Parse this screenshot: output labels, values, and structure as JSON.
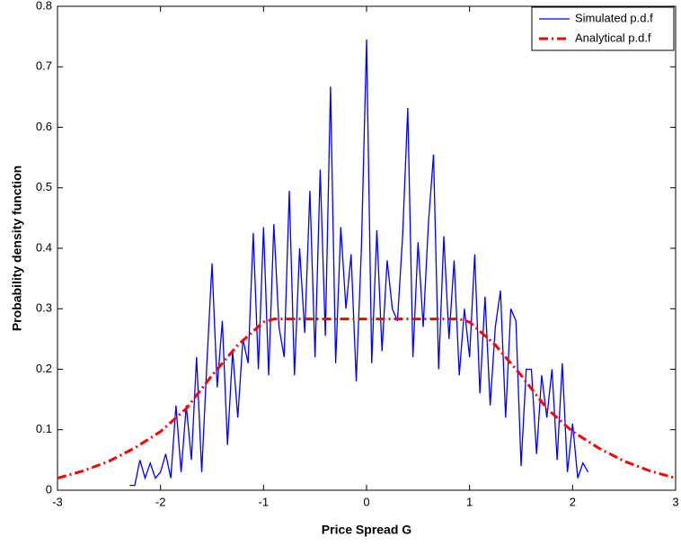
{
  "chart_data": {
    "type": "line",
    "xlabel": "Price Spread G",
    "ylabel": "Probability density function",
    "xlim": [
      -3,
      3
    ],
    "ylim": [
      0,
      0.8
    ],
    "xticks": [
      -3,
      -2,
      -1,
      0,
      1,
      2,
      3
    ],
    "yticks": [
      0,
      0.1,
      0.2,
      0.3,
      0.4,
      0.5,
      0.6,
      0.7,
      0.8
    ],
    "legend": "upper-right",
    "series": [
      {
        "name": "Simulated p.d.f",
        "color": "#0000ff",
        "style": "solid",
        "x": [
          -2.3,
          -2.25,
          -2.2,
          -2.15,
          -2.1,
          -2.05,
          -2.0,
          -1.95,
          -1.9,
          -1.85,
          -1.8,
          -1.75,
          -1.7,
          -1.65,
          -1.6,
          -1.55,
          -1.5,
          -1.45,
          -1.4,
          -1.35,
          -1.3,
          -1.25,
          -1.2,
          -1.15,
          -1.1,
          -1.05,
          -1.0,
          -0.95,
          -0.9,
          -0.85,
          -0.8,
          -0.75,
          -0.7,
          -0.65,
          -0.6,
          -0.55,
          -0.5,
          -0.45,
          -0.4,
          -0.35,
          -0.3,
          -0.25,
          -0.2,
          -0.15,
          -0.1,
          -0.05,
          0.0,
          0.05,
          0.1,
          0.15,
          0.2,
          0.25,
          0.3,
          0.35,
          0.4,
          0.45,
          0.5,
          0.55,
          0.6,
          0.65,
          0.7,
          0.75,
          0.8,
          0.85,
          0.9,
          0.95,
          1.0,
          1.05,
          1.1,
          1.15,
          1.2,
          1.25,
          1.3,
          1.35,
          1.4,
          1.45,
          1.5,
          1.55,
          1.6,
          1.65,
          1.7,
          1.75,
          1.8,
          1.85,
          1.9,
          1.95,
          2.0,
          2.05,
          2.1,
          2.15
        ],
        "values": [
          0.008,
          0.008,
          0.05,
          0.02,
          0.045,
          0.02,
          0.03,
          0.06,
          0.02,
          0.14,
          0.03,
          0.14,
          0.05,
          0.22,
          0.03,
          0.21,
          0.375,
          0.17,
          0.28,
          0.075,
          0.23,
          0.12,
          0.25,
          0.21,
          0.425,
          0.2,
          0.435,
          0.19,
          0.44,
          0.27,
          0.22,
          0.495,
          0.19,
          0.4,
          0.26,
          0.495,
          0.22,
          0.53,
          0.255,
          0.667,
          0.21,
          0.435,
          0.3,
          0.39,
          0.18,
          0.4,
          0.745,
          0.21,
          0.43,
          0.23,
          0.38,
          0.3,
          0.28,
          0.42,
          0.632,
          0.22,
          0.41,
          0.27,
          0.44,
          0.555,
          0.2,
          0.42,
          0.25,
          0.38,
          0.19,
          0.3,
          0.22,
          0.39,
          0.16,
          0.32,
          0.14,
          0.27,
          0.33,
          0.12,
          0.3,
          0.28,
          0.04,
          0.2,
          0.2,
          0.06,
          0.19,
          0.12,
          0.2,
          0.05,
          0.21,
          0.03,
          0.11,
          0.02,
          0.045,
          0.03
        ]
      },
      {
        "name": "Analytical p.d.f",
        "color": "#ff0000",
        "style": "dashdot",
        "x": [
          -3,
          -2.75,
          -2.5,
          -2.25,
          -2,
          -1.75,
          -1.5,
          -1.25,
          -1,
          -0.9,
          -0.5,
          0,
          0.5,
          0.9,
          1,
          1.25,
          1.5,
          1.75,
          2,
          2.25,
          2.5,
          2.75,
          3
        ],
        "values": [
          0.02,
          0.032,
          0.048,
          0.07,
          0.097,
          0.135,
          0.19,
          0.24,
          0.278,
          0.283,
          0.283,
          0.283,
          0.283,
          0.283,
          0.278,
          0.24,
          0.19,
          0.135,
          0.097,
          0.07,
          0.048,
          0.032,
          0.02
        ]
      }
    ]
  }
}
